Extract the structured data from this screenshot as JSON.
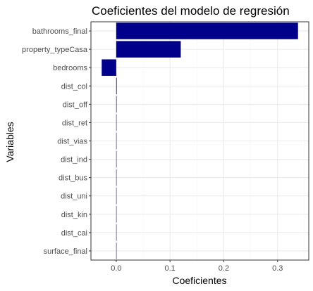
{
  "chart_data": {
    "type": "bar",
    "orientation": "horizontal",
    "title": "Coeficientes del modelo de regresión",
    "xlabel": "Coeficientes",
    "ylabel": "Variables",
    "categories": [
      "bathrooms_final",
      "property_typeCasa",
      "bedrooms",
      "dist_col",
      "dist_off",
      "dist_ret",
      "dist_vias",
      "dist_ind",
      "dist_bus",
      "dist_uni",
      "dist_kin",
      "dist_cai",
      "surface_final"
    ],
    "values": [
      0.338,
      0.12,
      -0.027,
      0.001,
      0.0008,
      0.0006,
      0.0003,
      0.0002,
      0.0002,
      0.0002,
      0.0001,
      0.0001,
      0.0
    ],
    "x_ticks": [
      0.0,
      0.1,
      0.2,
      0.3
    ],
    "x_tick_labels": [
      "0.0",
      "0.1",
      "0.2",
      "0.3"
    ],
    "xlim": [
      -0.047,
      0.358
    ],
    "grid": true,
    "legend": "none",
    "colors": {
      "bar": "#00008b",
      "grid_major": "#ebebeb",
      "grid_minor": "#f5f5f5",
      "panel_border": "#333333"
    }
  }
}
